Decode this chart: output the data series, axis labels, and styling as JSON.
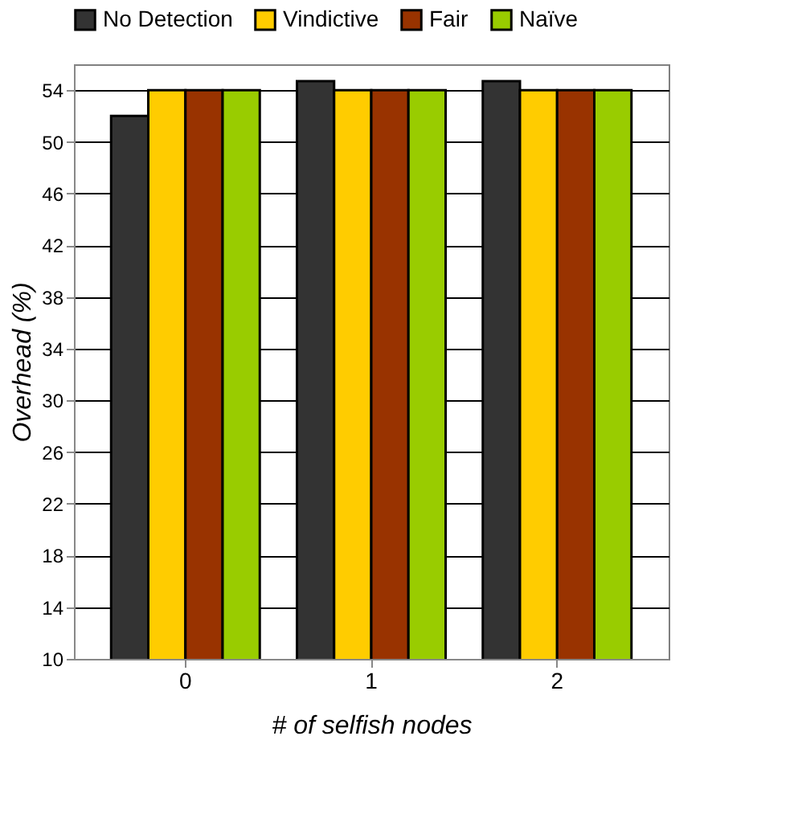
{
  "chart_data": {
    "type": "bar",
    "xlabel": "# of selfish nodes",
    "ylabel": "Overhead (%)",
    "categories": [
      "0",
      "1",
      "2"
    ],
    "series": [
      {
        "name": "No Detection",
        "color": "#333333",
        "values": [
          52,
          54.7,
          54.7
        ]
      },
      {
        "name": "Vindictive",
        "color": "#ffcc00",
        "values": [
          54,
          54,
          54
        ]
      },
      {
        "name": "Fair",
        "color": "#993300",
        "values": [
          54,
          54,
          54
        ]
      },
      {
        "name": "Naïve",
        "color": "#99cc00",
        "values": [
          54,
          54,
          54
        ]
      }
    ],
    "ylim": [
      10,
      56
    ],
    "yticks": [
      10,
      14,
      18,
      22,
      26,
      30,
      34,
      38,
      42,
      46,
      50,
      54
    ],
    "grid": "y",
    "legend": "top"
  }
}
